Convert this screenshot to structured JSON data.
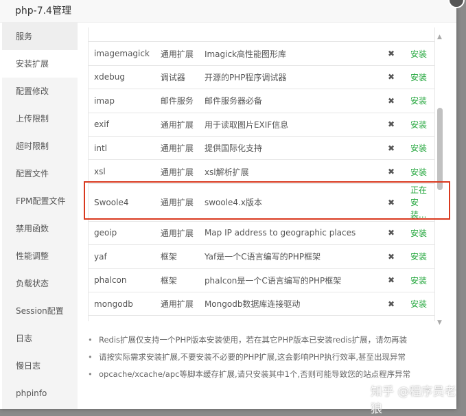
{
  "title": "php-7.4管理",
  "sidebar": {
    "items": [
      "服务",
      "安装扩展",
      "配置修改",
      "上传限制",
      "超时限制",
      "配置文件",
      "FPM配置文件",
      "禁用函数",
      "性能调整",
      "负载状态",
      "Session配置",
      "日志",
      "慢日志",
      "phpinfo"
    ]
  },
  "extensions": [
    {
      "name": "",
      "type": "",
      "desc": "",
      "status": ""
    },
    {
      "name": "imagemagick",
      "type": "通用扩展",
      "desc": "Imagick高性能图形库",
      "status": "安装"
    },
    {
      "name": "xdebug",
      "type": "调试器",
      "desc": "开源的PHP程序调试器",
      "status": "安装"
    },
    {
      "name": "imap",
      "type": "邮件服务",
      "desc": "邮件服务器必备",
      "status": "安装"
    },
    {
      "name": "exif",
      "type": "通用扩展",
      "desc": "用于读取图片EXIF信息",
      "status": "安装"
    },
    {
      "name": "intl",
      "type": "通用扩展",
      "desc": "提供国际化支持",
      "status": "安装"
    },
    {
      "name": "xsl",
      "type": "通用扩展",
      "desc": "xsl解析扩展",
      "status": "安装"
    },
    {
      "name": "Swoole4",
      "type": "通用扩展",
      "desc": "swoole4.x版本",
      "status": "正在安装..."
    },
    {
      "name": "geoip",
      "type": "通用扩展",
      "desc": "Map IP address to geographic places",
      "status": "安装"
    },
    {
      "name": "yaf",
      "type": "框架",
      "desc": "Yaf是一个C语言编写的PHP框架",
      "status": "安装"
    },
    {
      "name": "phalcon",
      "type": "框架",
      "desc": "phalcon是一个C语言编写的PHP框架",
      "status": "安装"
    },
    {
      "name": "mongodb",
      "type": "通用扩展",
      "desc": "Mongodb数据库连接驱动",
      "status": "安装"
    },
    {
      "name": "",
      "type": "",
      "desc": "",
      "status": ""
    }
  ],
  "installed_mark": "✖",
  "notes": [
    "Redis扩展仅支持一个PHP版本安装使用，若在其它PHP版本已安装redis扩展，请勿再装",
    "请按实际需求安装扩展,不要安装不必要的PHP扩展,这会影响PHP执行效率,甚至出现异常",
    "opcache/xcache/apc等脚本缓存扩展,请只安装其中1个,否则可能导致您的站点程序异常"
  ],
  "watermark": "知乎 @程序员老狼",
  "colors": {
    "install": "#20a53a",
    "highlight": "#d9391e"
  }
}
